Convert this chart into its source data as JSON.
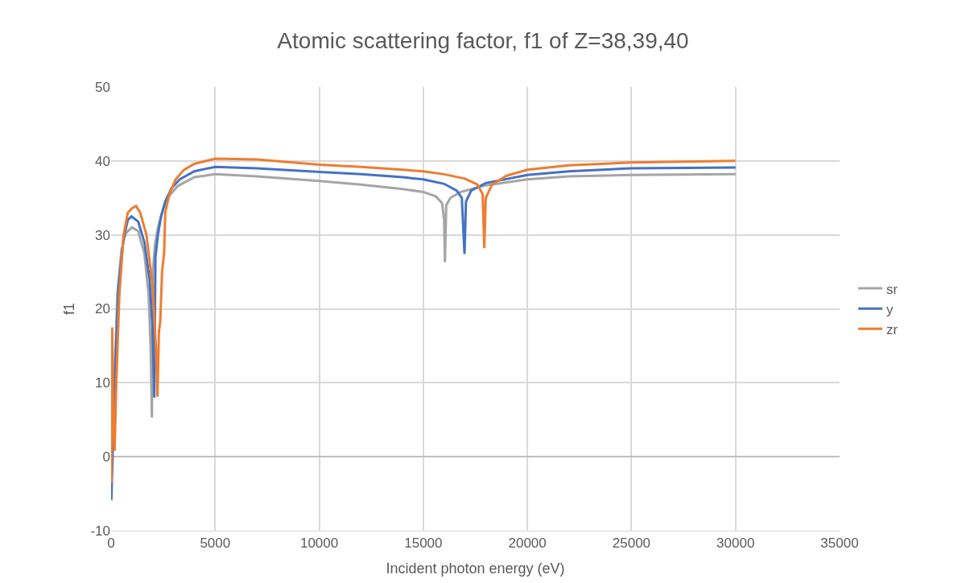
{
  "chart_data": {
    "type": "line",
    "title": "Atomic scattering factor, f1 of Z=38,39,40",
    "xlabel": "Incident photon energy (eV)",
    "ylabel": "f1",
    "xlim": [
      0,
      35000
    ],
    "xticks": [
      0,
      5000,
      10000,
      15000,
      20000,
      25000,
      30000,
      35000
    ],
    "ylim": [
      -10,
      50
    ],
    "yticks": [
      -10,
      0,
      10,
      20,
      30,
      40,
      50
    ],
    "grid": true,
    "legend": "right",
    "marker": "none",
    "line_style": "solid",
    "series": [
      {
        "name": "sr",
        "color": "#a5a5a5",
        "x": [
          10,
          150,
          300,
          500,
          700,
          1000,
          1300,
          1600,
          1800,
          1900,
          1960,
          2010,
          2100,
          2250,
          2500,
          2800,
          3200,
          4000,
          5000,
          7000,
          10000,
          12000,
          14000,
          15000,
          15600,
          15900,
          16000,
          16040,
          16100,
          16300,
          16800,
          18000,
          20000,
          22000,
          25000,
          30000
        ],
        "values": [
          -2,
          10,
          22,
          28,
          30.2,
          31,
          30.5,
          27.5,
          22,
          15,
          5.3,
          25,
          28.5,
          31,
          33.5,
          35.3,
          36.6,
          37.8,
          38.2,
          37.9,
          37.3,
          36.8,
          36.2,
          35.8,
          35.2,
          34.3,
          32,
          26.3,
          34,
          35,
          35.8,
          36.7,
          37.5,
          37.9,
          38.1,
          38.2
        ]
      },
      {
        "name": "y",
        "color": "#4472c4",
        "x": [
          10,
          200,
          360,
          600,
          800,
          980,
          1300,
          1600,
          1850,
          2000,
          2075,
          2130,
          2250,
          2400,
          2600,
          2900,
          3300,
          4000,
          5000,
          7000,
          10000,
          12000,
          14000,
          15000,
          16000,
          16600,
          16850,
          16980,
          17050,
          17300,
          18000,
          20000,
          22000,
          25000,
          30000
        ],
        "values": [
          -5.9,
          12,
          23,
          29.5,
          32,
          32.5,
          31.8,
          29,
          24,
          17,
          8,
          27,
          30,
          32.5,
          34.5,
          36.3,
          37.5,
          38.6,
          39.2,
          39,
          38.5,
          38.2,
          37.8,
          37.5,
          36.9,
          36,
          35,
          27.4,
          34.5,
          36,
          37,
          38.1,
          38.6,
          39,
          39.1
        ]
      },
      {
        "name": "zr",
        "color": "#ed7d31",
        "x": [
          20,
          50,
          100,
          170,
          250,
          400,
          600,
          800,
          1000,
          1200,
          1400,
          1700,
          2000,
          2150,
          2230,
          2300,
          2360,
          2450,
          2550,
          2600,
          2800,
          3100,
          3500,
          4000,
          5000,
          7000,
          10000,
          12000,
          14000,
          15000,
          16000,
          17000,
          17600,
          17850,
          17930,
          18000,
          18300,
          19000,
          20000,
          22000,
          25000,
          30000
        ],
        "values": [
          -3.5,
          17.5,
          6,
          0.8,
          10,
          22,
          30,
          33,
          33.6,
          33.9,
          33,
          30,
          23,
          15,
          8.1,
          17,
          18.2,
          25,
          27.7,
          33,
          35.5,
          37.5,
          38.8,
          39.6,
          40.3,
          40.2,
          39.5,
          39.2,
          38.8,
          38.6,
          38.2,
          37.6,
          36.8,
          35.5,
          28.2,
          35,
          36.8,
          38,
          38.8,
          39.4,
          39.8,
          40
        ]
      }
    ]
  }
}
